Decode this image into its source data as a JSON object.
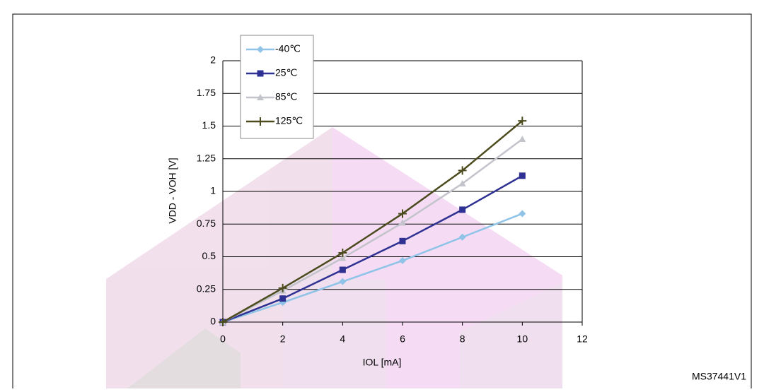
{
  "chart_data": {
    "type": "line",
    "x": [
      0,
      2,
      4,
      6,
      8,
      10
    ],
    "series": [
      {
        "name": "-40℃",
        "color": "#8fc3e8",
        "marker": "diamond",
        "values": [
          0,
          0.15,
          0.31,
          0.47,
          0.65,
          0.83
        ]
      },
      {
        "name": "25℃",
        "color": "#2e3192",
        "marker": "square",
        "values": [
          0,
          0.18,
          0.4,
          0.62,
          0.86,
          1.12
        ]
      },
      {
        "name": "85℃",
        "color": "#c3c3cb",
        "marker": "triangle",
        "values": [
          0,
          0.24,
          0.49,
          0.76,
          1.06,
          1.4
        ]
      },
      {
        "name": "125℃",
        "color": "#4b4b1e",
        "marker": "plus",
        "values": [
          0,
          0.26,
          0.53,
          0.83,
          1.16,
          1.54
        ]
      }
    ],
    "xlabel": "IOL [mA]",
    "ylabel": "VDD - VOH [V]",
    "xlim": [
      0,
      12
    ],
    "xticks": [
      0,
      2,
      4,
      6,
      8,
      10,
      12
    ],
    "ylim": [
      0,
      2
    ],
    "yticks": [
      0,
      0.25,
      0.5,
      0.75,
      1,
      1.25,
      1.5,
      1.75,
      2
    ],
    "grid": true,
    "legend": "upper left",
    "footnote": "MS37441V1"
  }
}
